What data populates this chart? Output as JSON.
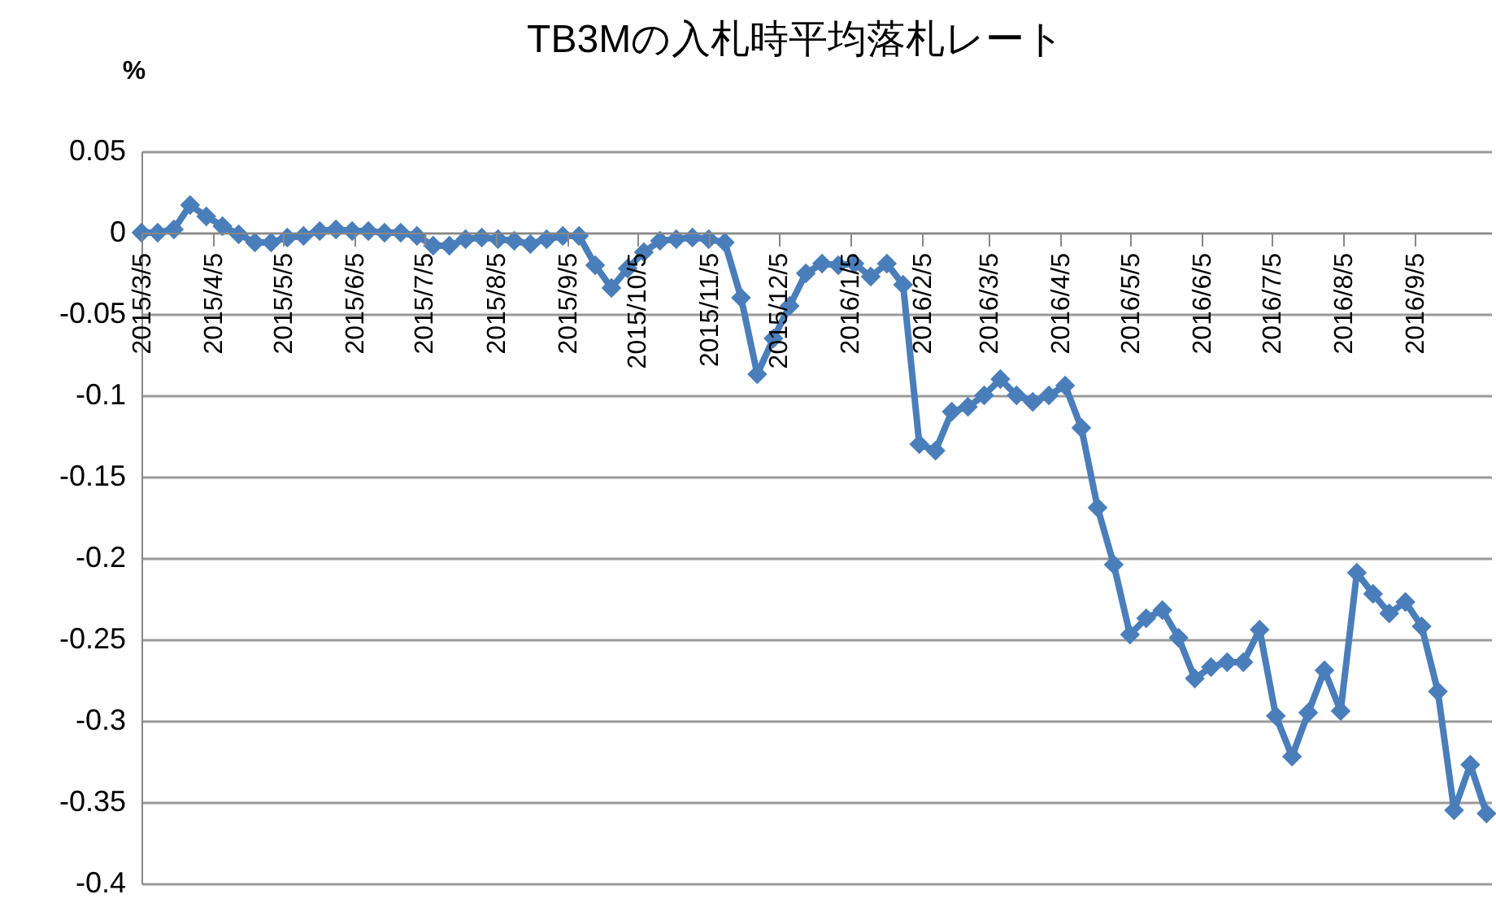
{
  "chart_data": {
    "type": "line",
    "title": "TB3Mの入札時平均落札レート",
    "ylabel": "%",
    "x": [
      "2015-03-05",
      "2015-03-12",
      "2015-03-19",
      "2015-03-26",
      "2015-04-02",
      "2015-04-09",
      "2015-04-16",
      "2015-04-23",
      "2015-04-30",
      "2015-05-07",
      "2015-05-14",
      "2015-05-21",
      "2015-05-28",
      "2015-06-04",
      "2015-06-11",
      "2015-06-18",
      "2015-06-25",
      "2015-07-02",
      "2015-07-09",
      "2015-07-16",
      "2015-07-23",
      "2015-07-30",
      "2015-08-06",
      "2015-08-13",
      "2015-08-20",
      "2015-08-27",
      "2015-09-03",
      "2015-09-10",
      "2015-09-17",
      "2015-09-24",
      "2015-10-01",
      "2015-10-08",
      "2015-10-15",
      "2015-10-22",
      "2015-10-29",
      "2015-11-05",
      "2015-11-12",
      "2015-11-19",
      "2015-11-26",
      "2015-12-03",
      "2015-12-10",
      "2015-12-17",
      "2015-12-24",
      "2015-12-31",
      "2016-01-07",
      "2016-01-14",
      "2016-01-21",
      "2016-01-28",
      "2016-02-04",
      "2016-02-11",
      "2016-02-18",
      "2016-02-25",
      "2016-03-03",
      "2016-03-10",
      "2016-03-17",
      "2016-03-24",
      "2016-03-31",
      "2016-04-07",
      "2016-04-14",
      "2016-04-21",
      "2016-04-28",
      "2016-05-05",
      "2016-05-12",
      "2016-05-19",
      "2016-05-26",
      "2016-06-02",
      "2016-06-09",
      "2016-06-16",
      "2016-06-23",
      "2016-06-30",
      "2016-07-07",
      "2016-07-14",
      "2016-07-21",
      "2016-07-28",
      "2016-08-04",
      "2016-08-11",
      "2016-08-18",
      "2016-08-25",
      "2016-09-01",
      "2016-09-08",
      "2016-09-15",
      "2016-09-22",
      "2016-09-29",
      "2016-10-06"
    ],
    "series": [
      {
        "color": "#4a7ebb",
        "values": [
          0,
          0,
          0.002,
          0.017,
          0.01,
          0.004,
          -0.001,
          -0.006,
          -0.006,
          -0.003,
          -0.002,
          0.001,
          0.002,
          0.001,
          0.001,
          0,
          0,
          -0.002,
          -0.008,
          -0.008,
          -0.004,
          -0.003,
          -0.004,
          -0.005,
          -0.007,
          -0.004,
          -0.002,
          -0.002,
          -0.02,
          -0.034,
          -0.022,
          -0.012,
          -0.005,
          -0.004,
          -0.003,
          -0.004,
          -0.006,
          -0.04,
          -0.087,
          -0.065,
          -0.045,
          -0.025,
          -0.019,
          -0.02,
          -0.019,
          -0.027,
          -0.019,
          -0.032,
          -0.13,
          -0.134,
          -0.11,
          -0.107,
          -0.1,
          -0.09,
          -0.1,
          -0.104,
          -0.1,
          -0.094,
          -0.12,
          -0.169,
          -0.204,
          -0.247,
          -0.237,
          -0.232,
          -0.249,
          -0.274,
          -0.267,
          -0.264,
          -0.264,
          -0.244,
          -0.297,
          -0.322,
          -0.295,
          -0.269,
          -0.294,
          -0.209,
          -0.222,
          -0.234,
          -0.227,
          -0.242,
          -0.282,
          -0.355,
          -0.327,
          -0.357
        ]
      }
    ],
    "xlim": [
      "2015-03-05",
      "2016-10-08"
    ],
    "xticks": [
      {
        "value": "2015-03-05",
        "label": "2015/3/5"
      },
      {
        "value": "2015-04-05",
        "label": "2015/4/5"
      },
      {
        "value": "2015-05-05",
        "label": "2015/5/5"
      },
      {
        "value": "2015-06-05",
        "label": "2015/6/5"
      },
      {
        "value": "2015-07-05",
        "label": "2015/7/5"
      },
      {
        "value": "2015-08-05",
        "label": "2015/8/5"
      },
      {
        "value": "2015-09-05",
        "label": "2015/9/5"
      },
      {
        "value": "2015-10-05",
        "label": "2015/10/5"
      },
      {
        "value": "2015-11-05",
        "label": "2015/11/5"
      },
      {
        "value": "2015-12-05",
        "label": "2015/12/5"
      },
      {
        "value": "2016-01-05",
        "label": "2016/1/5"
      },
      {
        "value": "2016-02-05",
        "label": "2016/2/5"
      },
      {
        "value": "2016-03-05",
        "label": "2016/3/5"
      },
      {
        "value": "2016-04-05",
        "label": "2016/4/5"
      },
      {
        "value": "2016-05-05",
        "label": "2016/5/5"
      },
      {
        "value": "2016-06-05",
        "label": "2016/6/5"
      },
      {
        "value": "2016-07-05",
        "label": "2016/7/5"
      },
      {
        "value": "2016-08-05",
        "label": "2016/8/5"
      },
      {
        "value": "2016-09-05",
        "label": "2016/9/5"
      }
    ],
    "ylim": [
      -0.4,
      0.05
    ],
    "yticks": [
      {
        "value": 0.05,
        "label": "0.05"
      },
      {
        "value": 0,
        "label": "0"
      },
      {
        "value": -0.05,
        "label": "-0.05"
      },
      {
        "value": -0.1,
        "label": "-0.1"
      },
      {
        "value": -0.15,
        "label": "-0.15"
      },
      {
        "value": -0.2,
        "label": "-0.2"
      },
      {
        "value": -0.25,
        "label": "-0.25"
      },
      {
        "value": -0.3,
        "label": "-0.3"
      },
      {
        "value": -0.35,
        "label": "-0.35"
      },
      {
        "value": -0.4,
        "label": "-0.4"
      }
    ],
    "grid": "y",
    "marker": "diamond",
    "line_style": "solid"
  }
}
